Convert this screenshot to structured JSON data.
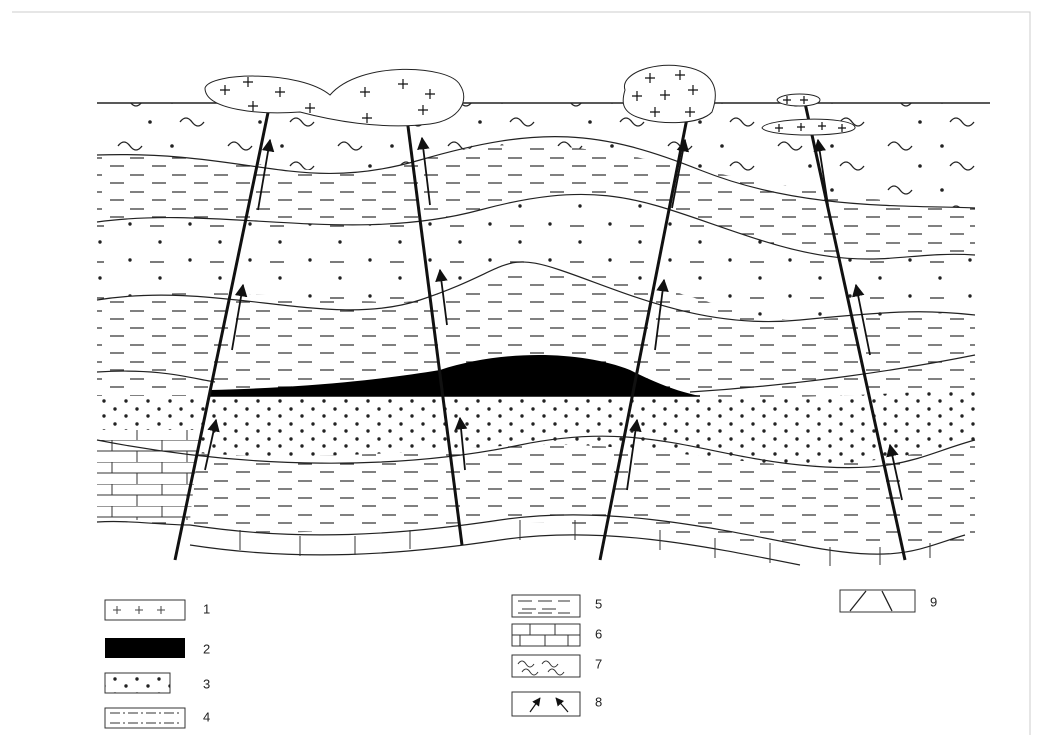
{
  "legend": {
    "items": [
      "1",
      "2",
      "3",
      "4",
      "5",
      "6",
      "7",
      "8",
      "9"
    ]
  }
}
